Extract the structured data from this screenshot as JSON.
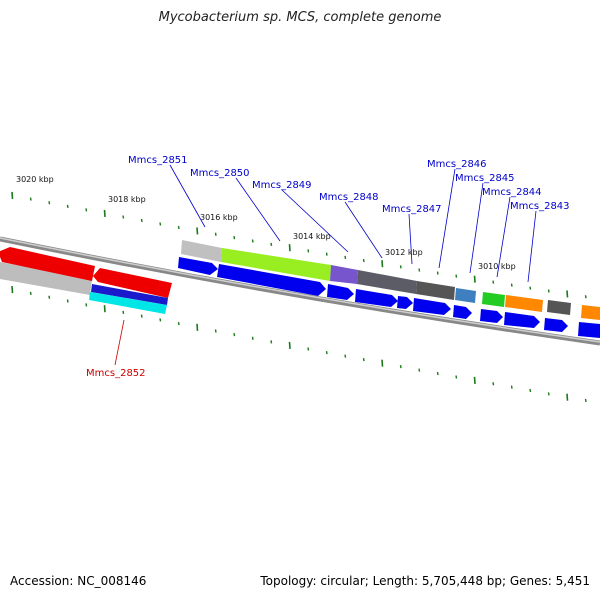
{
  "title": "Mycobacterium sp. MCS, complete genome",
  "footer": {
    "accession": "Accession: NC_008146",
    "summary": "Topology: circular; Length: 5,705,448 bp; Genes: 5,451"
  },
  "scale_labels": [
    "3020 kbp",
    "3018 kbp",
    "3016 kbp",
    "3014 kbp",
    "3012 kbp",
    "3010 kbp"
  ],
  "gene_labels": [
    {
      "name": "Mmcs_2851",
      "color": "#0000cc"
    },
    {
      "name": "Mmcs_2850",
      "color": "#0000cc"
    },
    {
      "name": "Mmcs_2849",
      "color": "#0000cc"
    },
    {
      "name": "Mmcs_2848",
      "color": "#0000cc"
    },
    {
      "name": "Mmcs_2847",
      "color": "#0000cc"
    },
    {
      "name": "Mmcs_2846",
      "color": "#0000cc"
    },
    {
      "name": "Mmcs_2845",
      "color": "#0000cc"
    },
    {
      "name": "Mmcs_2844",
      "color": "#0000cc"
    },
    {
      "name": "Mmcs_2843",
      "color": "#0000cc"
    },
    {
      "name": "Mmcs_2852",
      "color": "#cc0000"
    }
  ],
  "colors": {
    "backbone": "#777777",
    "tick": "#1a7a1a",
    "cds_forward": "#0000ee",
    "cds_reverse": "#ee0000"
  }
}
